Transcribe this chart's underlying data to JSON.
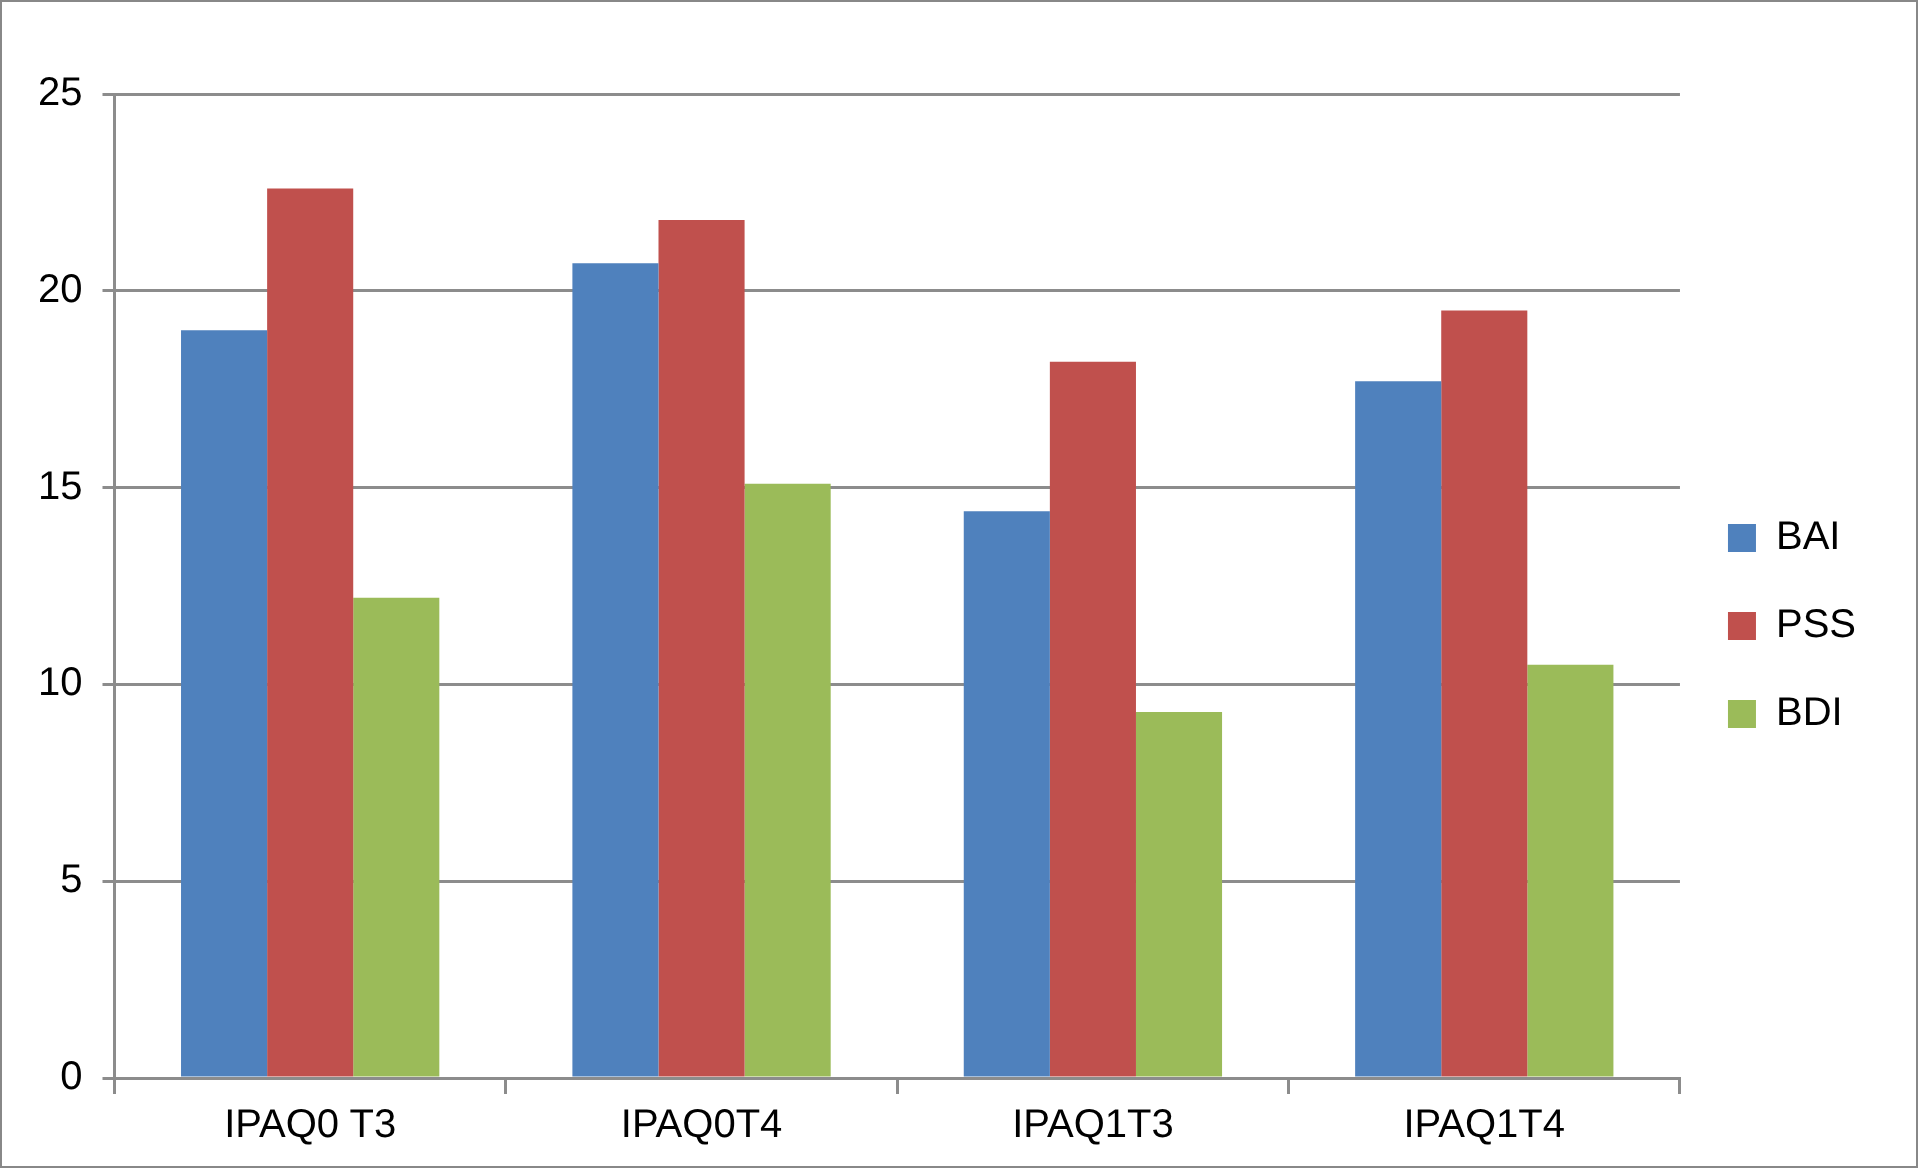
{
  "chart_data": {
    "type": "bar",
    "categories": [
      "IPAQ0 T3",
      "IPAQ0T4",
      "IPAQ1T3",
      "IPAQ1T4"
    ],
    "series": [
      {
        "name": "BAI",
        "color": "#4f81bd",
        "values": [
          19.0,
          20.7,
          14.4,
          17.7
        ]
      },
      {
        "name": "PSS",
        "color": "#c0504d",
        "values": [
          22.6,
          21.8,
          18.2,
          19.5
        ]
      },
      {
        "name": "BDI",
        "color": "#9bbb59",
        "values": [
          12.2,
          15.1,
          9.3,
          10.5
        ]
      }
    ],
    "ylim": [
      0,
      25
    ],
    "yticks": [
      0,
      5,
      10,
      15,
      20,
      25
    ],
    "grid": "y",
    "legend": "right"
  }
}
